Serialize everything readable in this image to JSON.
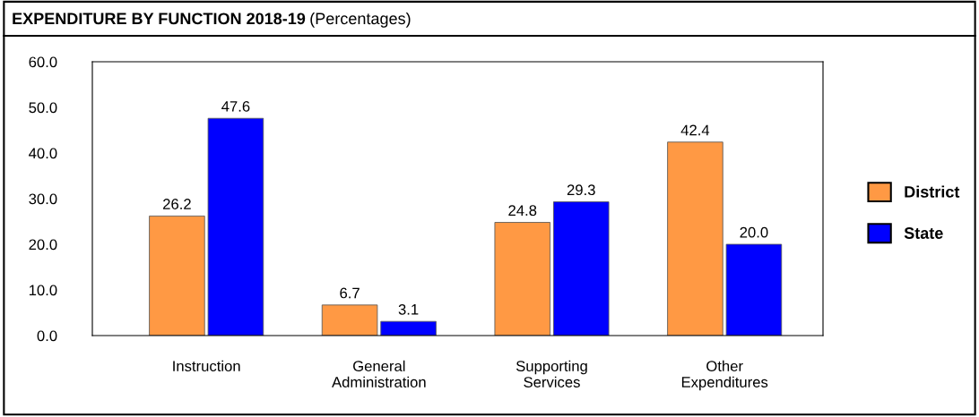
{
  "chart_data": {
    "type": "bar",
    "title": "EXPENDITURE BY FUNCTION 2018-19",
    "subtitle": "(Percentages)",
    "categories": [
      "Instruction",
      "General\nAdministration",
      "Supporting\nServices",
      "Other\nExpenditures"
    ],
    "series": [
      {
        "name": "District",
        "color": "#ff9944",
        "values": [
          26.2,
          6.7,
          24.8,
          42.4
        ],
        "value_labels": [
          "26.2",
          "6.7",
          "24.8",
          "42.4"
        ]
      },
      {
        "name": "State",
        "color": "#0000ff",
        "values": [
          47.6,
          3.1,
          29.3,
          20.0
        ],
        "value_labels": [
          "47.6",
          "3.1",
          "29.3",
          "20.0"
        ]
      }
    ],
    "ylim": [
      0,
      60
    ],
    "yticks": [
      {
        "value": 0,
        "label": "0.0"
      },
      {
        "value": 10,
        "label": "10.0"
      },
      {
        "value": 20,
        "label": "20.0"
      },
      {
        "value": 30,
        "label": "30.0"
      },
      {
        "value": 40,
        "label": "40.0"
      },
      {
        "value": 50,
        "label": "50.0"
      },
      {
        "value": 60,
        "label": "60.0"
      }
    ],
    "grid": false,
    "legend": "right"
  }
}
